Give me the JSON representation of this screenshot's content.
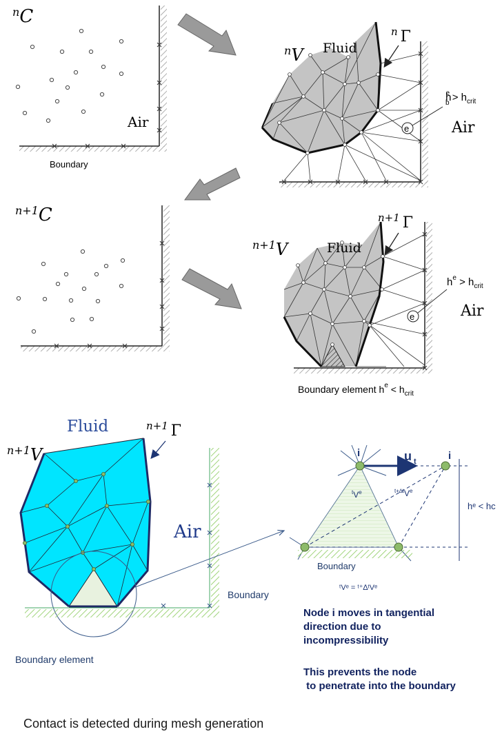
{
  "panel1": {
    "label_base": "n",
    "label_sym": "C",
    "air": "Air",
    "boundary": "Boundary"
  },
  "panel2": {
    "label_base": "n",
    "label_sym": "V",
    "fluid": "Fluid",
    "gamma_base": "n",
    "gamma_sym": "Γ",
    "crit_h": "h",
    "crit_sup": "e",
    "crit_sub": "b",
    "crit_rest": " > h",
    "crit_subcrit": "crit",
    "air": "Air",
    "element": "e"
  },
  "panel3": {
    "label_base": "n+1",
    "label_sym": "C"
  },
  "panel4": {
    "label_base": "n+1",
    "label_sym": "V",
    "fluid": "Fluid",
    "gamma_base": "n+1",
    "gamma_sym": "Γ",
    "crit_h": "h",
    "crit_sup": "e",
    "crit_rest": " > h",
    "crit_subcrit": "crit",
    "air": "Air",
    "element": "e",
    "boundary_caption_a": "Boundary element  h",
    "boundary_caption_sup": "e",
    "boundary_caption_b": " < h",
    "boundary_caption_sub": "crit"
  },
  "panel5": {
    "label_base": "n+1",
    "label_sym": "V",
    "fluid": "Fluid",
    "gamma_base": "n+1",
    "gamma_sym": "Γ",
    "air": "Air",
    "boundary": "Boundary",
    "boundary_element": "Boundary element"
  },
  "detail": {
    "node_left": "i",
    "node_right": "i",
    "velocity_u": "u",
    "velocity_t": "t",
    "vol_left_sup": "t",
    "vol_left": "V",
    "vol_left_sup2": "e",
    "vol_right_sup": "t+∆t",
    "vol_right": "V",
    "vol_right_sup2": "e",
    "height": "hᵉ < hc",
    "boundary": "Boundary",
    "equation": "ᵗVᵉ  = ᵗ⁺∆ᵗVᵉ",
    "note1_lines": [
      "Node i moves in tangential",
      "direction due to",
      "incompressibility"
    ],
    "note2_lines": [
      "This prevents the node",
      " to penetrate into the boundary"
    ]
  },
  "caption": "Contact is detected during mesh generation",
  "colors": {
    "fluid_gray": "#c4c4c4",
    "fluid_cyan": "#00e5ff",
    "navy_text": "#10215e",
    "blue_label": "#2c4c9b",
    "node_green": "#8dbb6a",
    "hatch_green": "#9fd47a"
  }
}
